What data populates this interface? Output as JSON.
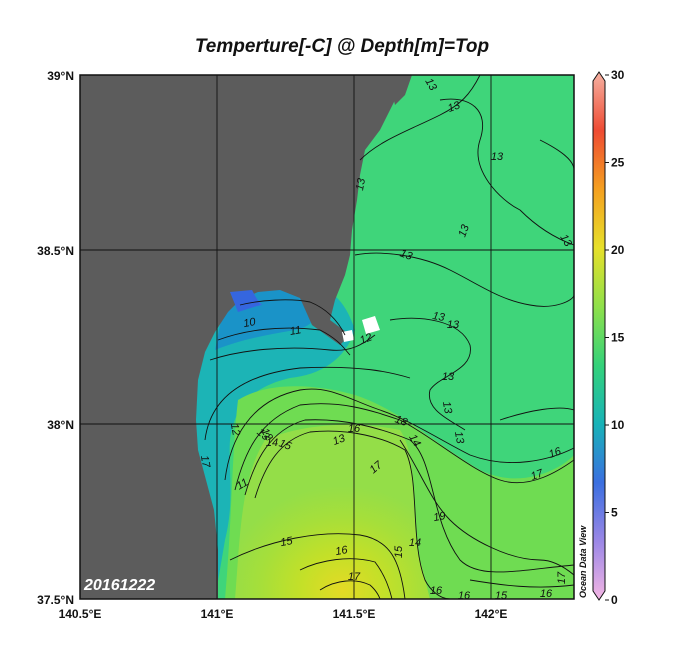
{
  "map": {
    "title": "Temperture[-C] @ Depth[m]=Top",
    "date_label": "20161222",
    "watermark": "Ocean Data View",
    "lon_ticks": [
      "140.5°E",
      "141°E",
      "141.5°E",
      "142°E"
    ],
    "lat_ticks": [
      "39°N",
      "38.5°N",
      "38°N",
      "37.5°N"
    ],
    "colorbar": {
      "ticks": [
        "30",
        "25",
        "20",
        "15",
        "10",
        "5",
        "0"
      ],
      "range": [
        0,
        30
      ],
      "colors": [
        "#f4b6e4",
        "#9b87e6",
        "#3b6fe0",
        "#18b3b8",
        "#34d27a",
        "#8fe04a",
        "#e7e02a",
        "#f4a020",
        "#ee4b33",
        "#f6b2a3"
      ]
    },
    "land_color": "#5c5c5c",
    "contour_labels": [
      "13",
      "13",
      "13",
      "13",
      "13",
      "13",
      "13",
      "13",
      "13",
      "13",
      "13",
      "13",
      "10",
      "11",
      "12",
      "12",
      "13",
      "14",
      "15",
      "16",
      "17",
      "17",
      "11",
      "12",
      "13",
      "15",
      "16",
      "17",
      "18",
      "19",
      "14",
      "14",
      "15",
      "16",
      "16",
      "15",
      "16",
      "17",
      "17",
      "16"
    ]
  }
}
